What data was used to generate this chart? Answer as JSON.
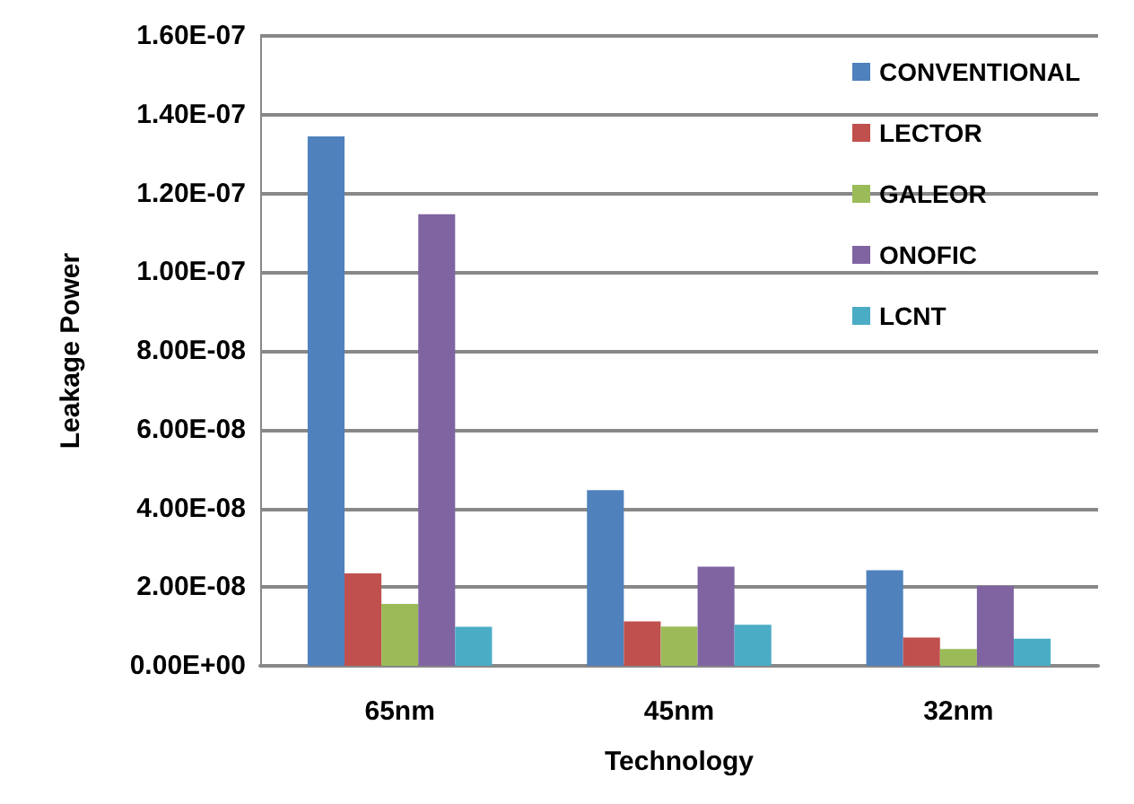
{
  "chart_data": {
    "type": "bar",
    "xlabel": "Technology",
    "ylabel": "Leakage Power",
    "categories": [
      "65nm",
      "45nm",
      "32nm"
    ],
    "series": [
      {
        "name": "CONVENTIONAL",
        "color": "#4f81bd",
        "values": [
          1.345e-07,
          4.46e-08,
          2.43e-08
        ]
      },
      {
        "name": "LECTOR",
        "color": "#c0504d",
        "values": [
          2.35e-08,
          1.13e-08,
          7.2e-09
        ]
      },
      {
        "name": "GALEOR",
        "color": "#9bbb59",
        "values": [
          1.57e-08,
          1e-08,
          4.3e-09
        ]
      },
      {
        "name": "ONOFIC",
        "color": "#8064a2",
        "values": [
          1.147e-07,
          2.52e-08,
          2.03e-08
        ]
      },
      {
        "name": "LCNT",
        "color": "#4bacc6",
        "values": [
          9.9e-09,
          1.04e-08,
          6.9e-09
        ]
      }
    ],
    "ylim": [
      0,
      1.6e-07
    ],
    "yticks": [
      {
        "value": 0,
        "label": "0.00E+00"
      },
      {
        "value": 2e-08,
        "label": "2.00E-08"
      },
      {
        "value": 4e-08,
        "label": "4.00E-08"
      },
      {
        "value": 6e-08,
        "label": "6.00E-08"
      },
      {
        "value": 8e-08,
        "label": "8.00E-08"
      },
      {
        "value": 1e-07,
        "label": "1.00E-07"
      },
      {
        "value": 1.2e-07,
        "label": "1.20E-07"
      },
      {
        "value": 1.4e-07,
        "label": "1.40E-07"
      },
      {
        "value": 1.6e-07,
        "label": "1.60E-07"
      }
    ],
    "grid": "y",
    "legend": "top right"
  }
}
